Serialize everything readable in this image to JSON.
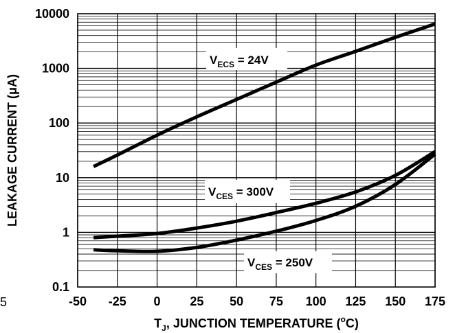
{
  "chart_data": {
    "type": "line",
    "xlabel": {
      "main": "T",
      "sub": "J",
      "rest": ", JUNCTION TEMPERATURE (",
      "sup": "o",
      "unit": "C)"
    },
    "ylabel": "LEAKAGE CURRENT (μA)",
    "x_ticks": [
      "-50",
      "-25",
      "0",
      "25",
      "50",
      "75",
      "100",
      "125",
      "150",
      "175"
    ],
    "y_ticks": [
      "0.1",
      "1",
      "10",
      "100",
      "1000",
      "10000"
    ],
    "xlim": [
      -50,
      175
    ],
    "ylim": [
      0.1,
      10000
    ],
    "yscale": "log",
    "grid": true,
    "series": [
      {
        "label": {
          "main": "V",
          "sub": "ECS",
          "rest": " = 24V"
        },
        "points": [
          [
            -40,
            16
          ],
          [
            -25,
            26
          ],
          [
            0,
            60
          ],
          [
            25,
            130
          ],
          [
            50,
            270
          ],
          [
            75,
            560
          ],
          [
            100,
            1150
          ],
          [
            125,
            2050
          ],
          [
            150,
            3700
          ],
          [
            175,
            6500
          ]
        ]
      },
      {
        "label": {
          "main": "V",
          "sub": "CES",
          "rest": " = 300V"
        },
        "points": [
          [
            -40,
            0.8
          ],
          [
            -25,
            0.85
          ],
          [
            0,
            0.95
          ],
          [
            25,
            1.2
          ],
          [
            50,
            1.6
          ],
          [
            75,
            2.3
          ],
          [
            100,
            3.4
          ],
          [
            125,
            5.5
          ],
          [
            150,
            11
          ],
          [
            175,
            30
          ]
        ]
      },
      {
        "label": {
          "main": "V",
          "sub": "CES",
          "rest": " = 250V"
        },
        "points": [
          [
            -40,
            0.48
          ],
          [
            -25,
            0.46
          ],
          [
            0,
            0.45
          ],
          [
            25,
            0.53
          ],
          [
            50,
            0.72
          ],
          [
            75,
            1.05
          ],
          [
            100,
            1.65
          ],
          [
            125,
            3.0
          ],
          [
            150,
            7.5
          ],
          [
            175,
            27
          ]
        ]
      }
    ]
  },
  "stray_mark": "5"
}
